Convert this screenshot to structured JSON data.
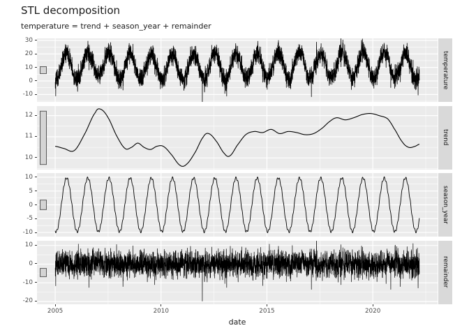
{
  "chart_data": {
    "type": "line",
    "title": "STL decomposition",
    "subtitle": "temperature = trend + season_year + remainder",
    "xlabel": "date",
    "x_ticks": [
      2005,
      2010,
      2015,
      2020
    ],
    "x_minor_ticks": [
      2007.5,
      2012.5,
      2017.5,
      2022.5
    ],
    "x_data_range": [
      2005.0,
      2022.2
    ],
    "x_expand_frac": 0.05,
    "samples_per_year": 365,
    "line_color": "#000000",
    "panel_bg": "#EBEBEB",
    "grid_color": "#FFFFFF",
    "strip_bg": "#D9D9D9",
    "scale_bar_fill": "#D4D4D4",
    "scale_bar_stroke": "#4A4A4A",
    "facets": [
      {
        "label": "temperature",
        "ylim": [
          -15.5,
          31.5
        ],
        "yticks": [
          30,
          20,
          10,
          0,
          -10
        ],
        "scale_bar_frac": 0.11
      },
      {
        "label": "trend",
        "ylim": [
          9.45,
          12.45
        ],
        "yticks": [
          12,
          11,
          10
        ],
        "scale_bar_frac": 0.84
      },
      {
        "label": "season_year",
        "ylim": [
          -11.5,
          11.5
        ],
        "yticks": [
          10,
          5,
          0,
          -5,
          -10
        ],
        "scale_bar_frac": 0.15
      },
      {
        "label": "remainder",
        "ylim": [
          -21.5,
          12.5
        ],
        "yticks": [
          10,
          0,
          -10,
          -20
        ],
        "scale_bar_frac": 0.13
      }
    ],
    "trend_points": [
      [
        2005.0,
        10.55
      ],
      [
        2005.4,
        10.45
      ],
      [
        2005.9,
        10.35
      ],
      [
        2006.4,
        11.15
      ],
      [
        2006.9,
        12.15
      ],
      [
        2007.15,
        12.3
      ],
      [
        2007.5,
        11.9
      ],
      [
        2007.9,
        11.05
      ],
      [
        2008.3,
        10.45
      ],
      [
        2008.6,
        10.5
      ],
      [
        2008.9,
        10.7
      ],
      [
        2009.2,
        10.5
      ],
      [
        2009.5,
        10.4
      ],
      [
        2009.8,
        10.55
      ],
      [
        2010.1,
        10.55
      ],
      [
        2010.45,
        10.2
      ],
      [
        2010.9,
        9.65
      ],
      [
        2011.2,
        9.7
      ],
      [
        2011.6,
        10.25
      ],
      [
        2012.0,
        11.0
      ],
      [
        2012.25,
        11.15
      ],
      [
        2012.6,
        10.8
      ],
      [
        2013.0,
        10.2
      ],
      [
        2013.25,
        10.1
      ],
      [
        2013.6,
        10.6
      ],
      [
        2014.0,
        11.1
      ],
      [
        2014.4,
        11.25
      ],
      [
        2014.8,
        11.2
      ],
      [
        2015.2,
        11.35
      ],
      [
        2015.6,
        11.15
      ],
      [
        2016.0,
        11.25
      ],
      [
        2016.4,
        11.2
      ],
      [
        2016.8,
        11.1
      ],
      [
        2017.2,
        11.15
      ],
      [
        2017.6,
        11.4
      ],
      [
        2018.0,
        11.75
      ],
      [
        2018.3,
        11.9
      ],
      [
        2018.7,
        11.8
      ],
      [
        2019.1,
        11.9
      ],
      [
        2019.5,
        12.05
      ],
      [
        2019.9,
        12.1
      ],
      [
        2020.3,
        12.0
      ],
      [
        2020.7,
        11.85
      ],
      [
        2021.0,
        11.4
      ],
      [
        2021.4,
        10.75
      ],
      [
        2021.7,
        10.5
      ],
      [
        2022.0,
        10.55
      ],
      [
        2022.2,
        10.65
      ]
    ],
    "season": {
      "base_amplitude": 9.7,
      "peak_phase": 0.54,
      "wiggle_amp": 0.45,
      "wiggle_freq": 9.7
    },
    "noise": {
      "sd": 3.3,
      "ar": 0.45,
      "seed": 42,
      "outliers": [
        {
          "t": 2006.6,
          "v": -12.5
        },
        {
          "t": 2007.9,
          "v": 10.5
        },
        {
          "t": 2008.2,
          "v": -12.0
        },
        {
          "t": 2009.7,
          "v": -11.0
        },
        {
          "t": 2011.95,
          "v": -19.8
        },
        {
          "t": 2013.1,
          "v": -12.5
        },
        {
          "t": 2014.8,
          "v": -11.5
        },
        {
          "t": 2016.2,
          "v": 10.0
        },
        {
          "t": 2017.1,
          "v": -13.5
        },
        {
          "t": 2018.5,
          "v": -11.0
        },
        {
          "t": 2020.85,
          "v": -13.5
        },
        {
          "t": 2021.3,
          "v": -12.0
        },
        {
          "t": 2021.9,
          "v": 11.0
        }
      ]
    }
  }
}
